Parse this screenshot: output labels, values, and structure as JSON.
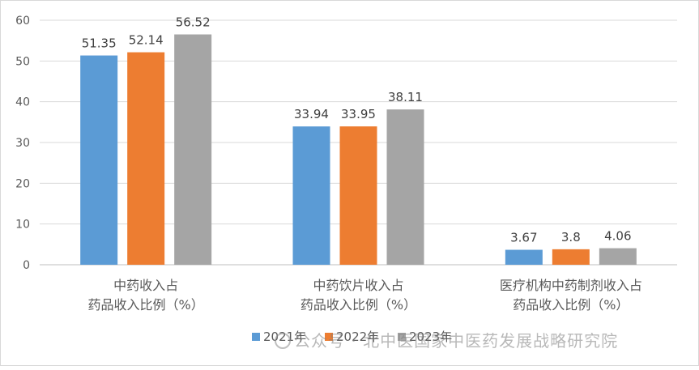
{
  "chart_data": {
    "type": "bar",
    "categories": [
      [
        "中药收入占",
        "药品收入比例（%）"
      ],
      [
        "中药饮片收入占",
        "药品收入比例（%）"
      ],
      [
        "医疗机构中药制剂收入占",
        "药品收入比例（%）"
      ]
    ],
    "series": [
      {
        "name": "2021年",
        "values": [
          51.35,
          33.94,
          3.67
        ],
        "color": "#5b9bd5"
      },
      {
        "name": "2022年",
        "values": [
          52.14,
          33.95,
          3.8
        ],
        "color": "#ed7d31"
      },
      {
        "name": "2023年",
        "values": [
          56.52,
          38.11,
          4.06
        ],
        "color": "#a5a5a5"
      }
    ],
    "data_labels": [
      [
        "51.35",
        "33.94",
        "3.67"
      ],
      [
        "52.14",
        "33.95",
        "3.8"
      ],
      [
        "56.52",
        "38.11",
        "4.06"
      ]
    ],
    "ylim": [
      0,
      60
    ],
    "yticks": [
      0,
      10,
      20,
      30,
      40,
      50,
      60
    ],
    "grid": true,
    "legend_position": "bottom"
  },
  "watermark": {
    "text": "公众号 · 北中医国家中医药发展战略研究院",
    "icon": "wechat-icon"
  }
}
